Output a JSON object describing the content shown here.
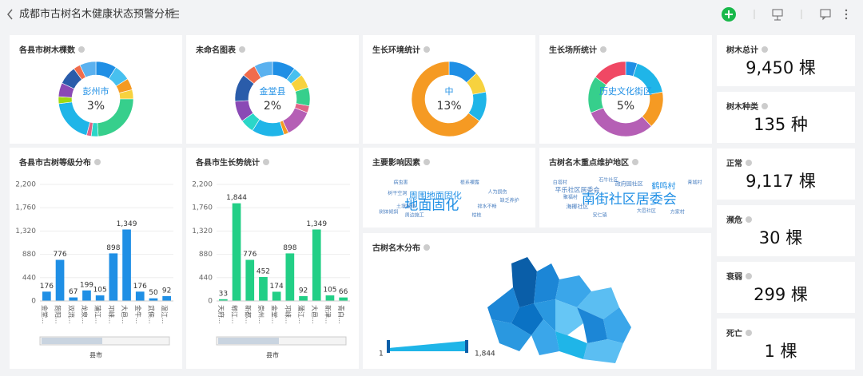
{
  "header": {
    "title": "成都市古树名木健康状态预警分析"
  },
  "donuts": [
    {
      "title": "各县市树木棵数",
      "center": "彭州市",
      "percent": "3%",
      "values": [
        9,
        7,
        5,
        4,
        24,
        3,
        2,
        19,
        3,
        6,
        8,
        3,
        7
      ],
      "colors": [
        "#1f8fe5",
        "#47c0ef",
        "#f59a23",
        "#f7d23e",
        "#36cf8c",
        "#2bd6c8",
        "#e06386",
        "#1fb5e8",
        "#a0d911",
        "#8a4ab5",
        "#2a5caa",
        "#f06c4c",
        "#5ab1ef"
      ]
    },
    {
      "title": "未命名图表",
      "center": "金堂县",
      "percent": "2%",
      "values": [
        10,
        4,
        6,
        8,
        3,
        12,
        2,
        14,
        6,
        9,
        12,
        6,
        8
      ],
      "colors": [
        "#1f8fe5",
        "#47c0ef",
        "#f7d23e",
        "#36cf8c",
        "#e06386",
        "#b55fb5",
        "#f59a23",
        "#1fb5e8",
        "#2bd6c8",
        "#8a4ab5",
        "#2a5caa",
        "#f06c4c",
        "#5ab1ef"
      ]
    },
    {
      "title": "生长环境统计",
      "center": "中",
      "percent": "13%",
      "values": [
        13,
        9,
        13,
        65
      ],
      "colors": [
        "#1f8fe5",
        "#f7d23e",
        "#1fb5e8",
        "#f59a23"
      ]
    },
    {
      "title": "生长场所统计",
      "center": "历史文化街区",
      "percent": "5%",
      "values": [
        5,
        17,
        16,
        31,
        16,
        15
      ],
      "colors": [
        "#1f8fe5",
        "#1fb5e8",
        "#f59a23",
        "#b55fb5",
        "#36cf8c",
        "#f04864"
      ]
    }
  ],
  "bar_charts": [
    {
      "title": "各县市古树等级分布",
      "xlabel": "县市",
      "color": "#1f8fe5",
      "categories": [
        "金堂...",
        "简阳...",
        "双流...",
        "龙泉...",
        "蒲江...",
        "邛崃...",
        "大邑...",
        "金牛...",
        "武侯...",
        "温江..."
      ],
      "values": [
        176,
        776,
        67,
        199,
        105,
        898,
        1349,
        176,
        50,
        92
      ],
      "value_labels": [
        "176",
        "776",
        "67",
        "199",
        "105",
        "898",
        "1,349",
        "176",
        "50",
        "92"
      ],
      "ylim": [
        0,
        2200
      ],
      "yticks": [
        0,
        440,
        880,
        {
          "value": 1320,
          "label": "1,320"
        },
        {
          "value": 1760,
          "label": "1,760"
        },
        {
          "value": 2200,
          "label": "2,200"
        }
      ]
    },
    {
      "title": "各县市生长势统计",
      "xlabel": "县市",
      "color": "#22cf86",
      "categories": [
        "天府...",
        "郫江...",
        "新都...",
        "崇州...",
        "金堂...",
        "邛崃...",
        "蒲江...",
        "大邑...",
        "新津...",
        "青白..."
      ],
      "values": [
        33,
        1844,
        776,
        452,
        174,
        898,
        92,
        1349,
        105,
        66
      ],
      "value_labels": [
        "33",
        "1,844",
        "776",
        "452",
        "174",
        "898",
        "92",
        "1,349",
        "105",
        "66"
      ],
      "ylim": [
        0,
        2200
      ],
      "yticks": [
        0,
        440,
        880,
        {
          "value": 1320,
          "label": "1,320"
        },
        {
          "value": 1760,
          "label": "1,760"
        },
        {
          "value": 2200,
          "label": "2,200"
        }
      ]
    }
  ],
  "word_clouds": [
    {
      "title": "主要影响因素",
      "words": [
        "地面固化",
        "周围地面固化",
        "病虫害",
        "根系裸露",
        "树干空洞",
        "人为损伤",
        "土壤板结",
        "排水不畅",
        "周边施工",
        "枯枝",
        "缺乏养护",
        "树体倾斜"
      ]
    },
    {
      "title": "古树名木重点维护地区",
      "words": [
        "南街社区居委会",
        "平乐社区居委会",
        "鹤鸣村",
        "政府园社区",
        "海椰社区",
        "聚福村",
        "石牛社区",
        "大邑社区",
        "方家村",
        "青城村",
        "白塔村",
        "安仁镇"
      ]
    }
  ],
  "map": {
    "title": "古树名木分布",
    "legend_min": "1",
    "legend_max": "1,844"
  },
  "kpis": [
    {
      "label": "树木总计",
      "value": "9,450 棵"
    },
    {
      "label": "树木种类",
      "value": "135 种"
    },
    {
      "label": "正常",
      "value": "9,117 棵"
    },
    {
      "label": "濒危",
      "value": "30 棵"
    },
    {
      "label": "衰弱",
      "value": "299 棵"
    },
    {
      "label": "死亡",
      "value": "1 棵"
    }
  ]
}
